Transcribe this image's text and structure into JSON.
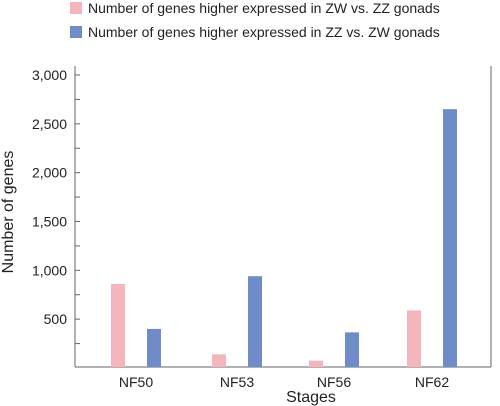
{
  "chart_data": {
    "type": "bar",
    "title": "",
    "xlabel": "Stages",
    "ylabel": "Number of genes",
    "categories": [
      "NF50",
      "NF53",
      "NF56",
      "NF62"
    ],
    "series": [
      {
        "name": "Number of genes higher expressed in ZW vs. ZZ gonads",
        "color": "#f4b6bc",
        "values": [
          860,
          140,
          75,
          590
        ]
      },
      {
        "name": "Number of genes higher expressed in ZZ vs. ZW gonads",
        "color": "#6f8cc9",
        "values": [
          400,
          940,
          365,
          2650
        ]
      }
    ],
    "ylim": [
      0,
      3000
    ],
    "yticks": [
      500,
      1000,
      1500,
      2000,
      2500,
      3000
    ],
    "ytick_labels": [
      "500",
      "1,000",
      "1,500",
      "2,000",
      "2,500",
      "3,000"
    ],
    "grid": false,
    "legend_position": "top-left",
    "colors": {
      "axis": "#666666",
      "text": "#222222"
    }
  }
}
